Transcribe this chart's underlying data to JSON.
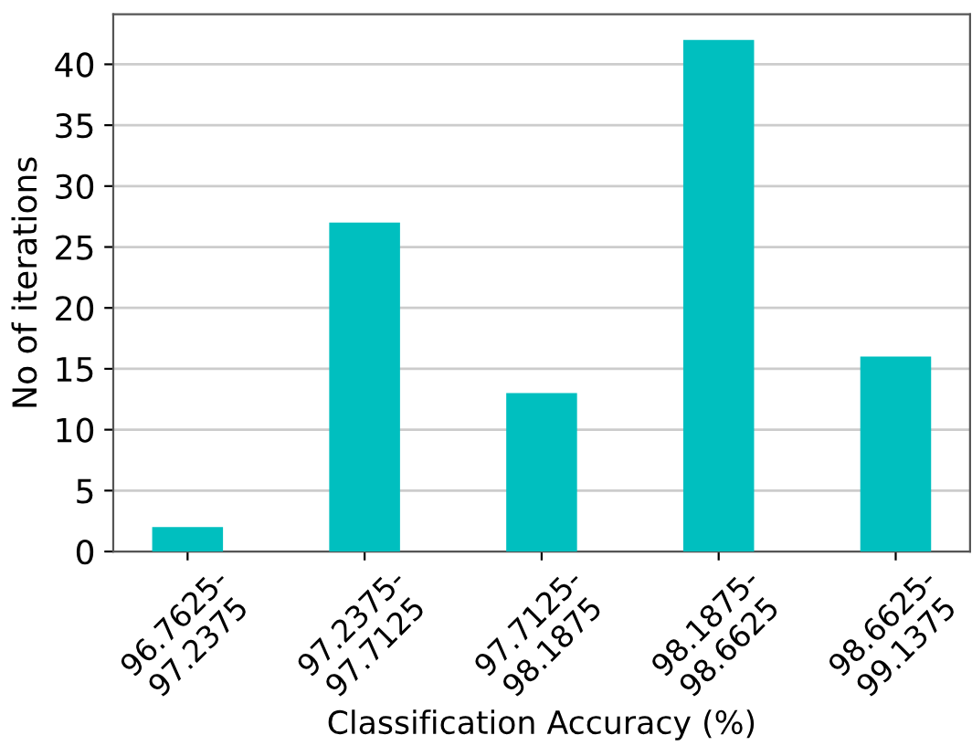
{
  "chart_data": {
    "type": "bar",
    "xlabel": "Classification Accuracy (%)",
    "ylabel": "No of iterations",
    "categories": [
      "96.7625-\n97.2375",
      "97.2375-\n97.7125",
      "97.7125-\n98.1875",
      "98.1875-\n98.6625",
      "98.6625-\n99.1375"
    ],
    "values": [
      2,
      27,
      13,
      42,
      16
    ],
    "color": "#00bfbf",
    "ylim": [
      0,
      44.1
    ],
    "yticks": [
      0,
      5,
      10,
      15,
      20,
      25,
      30,
      35,
      40
    ],
    "grid": "y"
  }
}
